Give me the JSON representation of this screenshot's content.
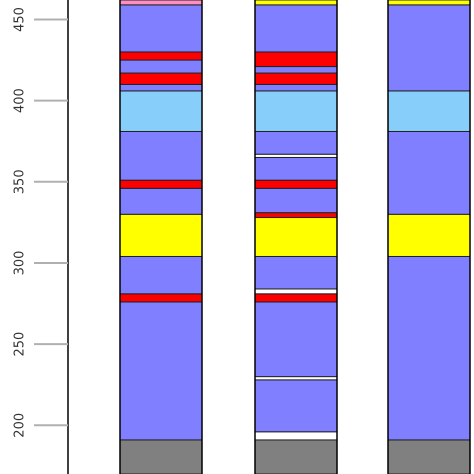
{
  "chart_data": {
    "type": "bar",
    "title": "",
    "xlabel": "",
    "ylabel": "",
    "ylim": [
      170,
      462
    ],
    "y_ticks": [
      {
        "value": 200,
        "label": "200"
      },
      {
        "value": 250,
        "label": "250"
      },
      {
        "value": 300,
        "label": "300"
      },
      {
        "value": 350,
        "label": "350"
      },
      {
        "value": 400,
        "label": "400"
      },
      {
        "value": 450,
        "label": "450"
      }
    ],
    "grid": false,
    "colors": {
      "gray": "#808080",
      "blue": "#7f7fff",
      "red": "#ff0000",
      "yellow": "#ffff00",
      "lightblue": "#87cefa",
      "pink": "#ff8fc0",
      "white": "#ffffff"
    },
    "columns": [
      {
        "name": "",
        "segments": [
          {
            "from": 170,
            "to": 191,
            "color": "gray"
          },
          {
            "from": 191,
            "to": 276,
            "color": "blue"
          },
          {
            "from": 276,
            "to": 281,
            "color": "red"
          },
          {
            "from": 281,
            "to": 304,
            "color": "blue"
          },
          {
            "from": 304,
            "to": 330,
            "color": "yellow"
          },
          {
            "from": 330,
            "to": 346,
            "color": "blue"
          },
          {
            "from": 346,
            "to": 351,
            "color": "red"
          },
          {
            "from": 351,
            "to": 381,
            "color": "blue"
          },
          {
            "from": 381,
            "to": 406,
            "color": "lightblue"
          },
          {
            "from": 406,
            "to": 410,
            "color": "blue"
          },
          {
            "from": 410,
            "to": 417,
            "color": "red"
          },
          {
            "from": 417,
            "to": 425,
            "color": "blue"
          },
          {
            "from": 425,
            "to": 430,
            "color": "red"
          },
          {
            "from": 430,
            "to": 459,
            "color": "blue"
          },
          {
            "from": 459,
            "to": 462,
            "color": "pink"
          }
        ]
      },
      {
        "name": "",
        "segments": [
          {
            "from": 170,
            "to": 191,
            "color": "gray"
          },
          {
            "from": 191,
            "to": 196,
            "color": "white"
          },
          {
            "from": 196,
            "to": 228,
            "color": "blue"
          },
          {
            "from": 228,
            "to": 230,
            "color": "white"
          },
          {
            "from": 230,
            "to": 276,
            "color": "blue"
          },
          {
            "from": 276,
            "to": 281,
            "color": "red"
          },
          {
            "from": 281,
            "to": 284,
            "color": "white"
          },
          {
            "from": 284,
            "to": 304,
            "color": "blue"
          },
          {
            "from": 304,
            "to": 328,
            "color": "yellow"
          },
          {
            "from": 328,
            "to": 331,
            "color": "red"
          },
          {
            "from": 331,
            "to": 346,
            "color": "blue"
          },
          {
            "from": 346,
            "to": 351,
            "color": "red"
          },
          {
            "from": 351,
            "to": 365,
            "color": "blue"
          },
          {
            "from": 365,
            "to": 367,
            "color": "white"
          },
          {
            "from": 367,
            "to": 381,
            "color": "blue"
          },
          {
            "from": 381,
            "to": 406,
            "color": "lightblue"
          },
          {
            "from": 406,
            "to": 410,
            "color": "blue"
          },
          {
            "from": 410,
            "to": 417,
            "color": "red"
          },
          {
            "from": 417,
            "to": 421,
            "color": "blue"
          },
          {
            "from": 421,
            "to": 430,
            "color": "red"
          },
          {
            "from": 430,
            "to": 459,
            "color": "blue"
          },
          {
            "from": 459,
            "to": 462,
            "color": "yellow"
          }
        ]
      },
      {
        "name": "",
        "segments": [
          {
            "from": 170,
            "to": 191,
            "color": "gray"
          },
          {
            "from": 191,
            "to": 304,
            "color": "blue"
          },
          {
            "from": 304,
            "to": 330,
            "color": "yellow"
          },
          {
            "from": 330,
            "to": 381,
            "color": "blue"
          },
          {
            "from": 381,
            "to": 406,
            "color": "lightblue"
          },
          {
            "from": 406,
            "to": 459,
            "color": "blue"
          },
          {
            "from": 459,
            "to": 462,
            "color": "yellow"
          }
        ]
      }
    ]
  }
}
